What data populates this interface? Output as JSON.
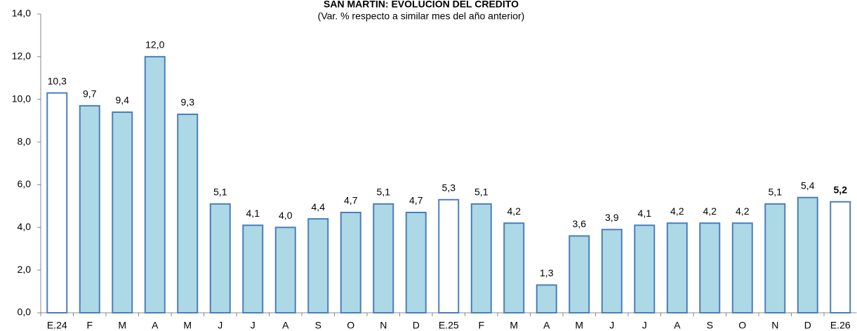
{
  "chart_data": {
    "type": "bar",
    "title": "SAN MARTÍN: EVOLUCIÓN DEL CRÉDITO",
    "subtitle": "(Var. % respecto a similar mes del año anterior)",
    "categories": [
      "E.24",
      "F",
      "M",
      "A",
      "M",
      "J",
      "J",
      "A",
      "S",
      "O",
      "N",
      "D",
      "E.25",
      "F",
      "M",
      "A",
      "M",
      "J",
      "J",
      "A",
      "S",
      "O",
      "N",
      "D",
      "E.26"
    ],
    "values": [
      10.3,
      9.7,
      9.4,
      12.0,
      9.3,
      5.1,
      4.1,
      4.0,
      4.4,
      4.7,
      5.1,
      4.7,
      5.3,
      5.1,
      4.2,
      1.3,
      3.6,
      3.9,
      4.1,
      4.2,
      4.2,
      4.2,
      5.1,
      5.4,
      5.2
    ],
    "value_labels": [
      "10,3",
      "9,7",
      "9,4",
      "12,0",
      "9,3",
      "5,1",
      "4,1",
      "4,0",
      "4,4",
      "4,7",
      "5,1",
      "4,7",
      "5,3",
      "5,1",
      "4,2",
      "1,3",
      "3,6",
      "3,9",
      "4,1",
      "4,2",
      "4,2",
      "4,2",
      "5,1",
      "5,4",
      "5,2"
    ],
    "colors": [
      "#ffffff",
      "#add8e6",
      "#add8e6",
      "#add8e6",
      "#add8e6",
      "#add8e6",
      "#add8e6",
      "#add8e6",
      "#add8e6",
      "#add8e6",
      "#add8e6",
      "#add8e6",
      "#ffffff",
      "#add8e6",
      "#add8e6",
      "#add8e6",
      "#add8e6",
      "#add8e6",
      "#add8e6",
      "#add8e6",
      "#add8e6",
      "#add8e6",
      "#add8e6",
      "#add8e6",
      "#ffffff"
    ],
    "edge_color": "#4a7ebb",
    "ylim": [
      0,
      14
    ],
    "yticks": [
      {
        "value": 0,
        "label": "0,0"
      },
      {
        "value": 2,
        "label": "2,0"
      },
      {
        "value": 4,
        "label": "4,0"
      },
      {
        "value": 6,
        "label": "6,0"
      },
      {
        "value": 8,
        "label": "8,0"
      },
      {
        "value": 10,
        "label": "10,0"
      },
      {
        "value": 12,
        "label": "12,0"
      },
      {
        "value": 14,
        "label": "14,0"
      }
    ],
    "grid": false
  }
}
